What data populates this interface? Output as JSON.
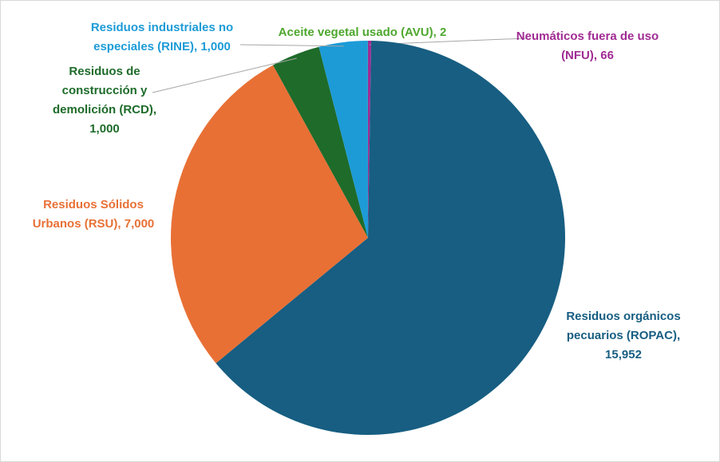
{
  "chart_data": {
    "type": "pie",
    "categories": [
      "Neumáticos fuera de uso (NFU)",
      "Residuos orgánicos pecuarios (ROPAC)",
      "Residuos Sólidos Urbanos (RSU)",
      "Residuos de construcción y demolición (RCD)",
      "Residuos industriales no especiales (RINE)",
      "Aceite vegetal usado (AVU)"
    ],
    "values": [
      66,
      15952,
      7000,
      1000,
      1000,
      2
    ],
    "value_labels": [
      "66",
      "15,952",
      "7,000",
      "1,000",
      "1,000",
      "2"
    ],
    "colors": [
      "#a02b93",
      "#175e82",
      "#e87035",
      "#1e6b2a",
      "#1c9bd7",
      "#4ea72e"
    ]
  }
}
